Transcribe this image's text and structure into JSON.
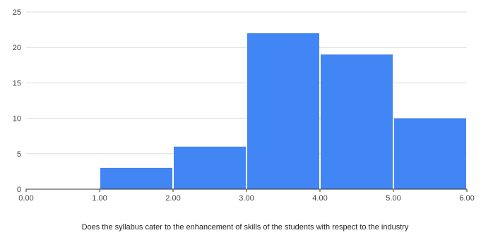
{
  "chart_data": {
    "type": "bar",
    "subtype": "histogram",
    "title": "",
    "xlabel": "Does the syllabus cater to the enhancement of skills of the students with respect to the industry",
    "ylabel": "",
    "bins": [
      {
        "from": 0,
        "to": 1,
        "count": 0
      },
      {
        "from": 1,
        "to": 2,
        "count": 3
      },
      {
        "from": 2,
        "to": 3,
        "count": 6
      },
      {
        "from": 3,
        "to": 4,
        "count": 22
      },
      {
        "from": 4,
        "to": 5,
        "count": 19
      },
      {
        "from": 5,
        "to": 6,
        "count": 10
      }
    ],
    "xlim": [
      0,
      6
    ],
    "ylim": [
      0,
      25
    ],
    "x_ticks": [
      "0.00",
      "1.00",
      "2.00",
      "3.00",
      "4.00",
      "5.00",
      "6.00"
    ],
    "y_ticks": [
      0,
      5,
      10,
      15,
      20,
      25
    ],
    "grid": "horizontal",
    "legend": "none",
    "colors": {
      "bar": "#4285f4",
      "grid": "#dddddd",
      "axis": "#333333",
      "text": "#444444"
    }
  }
}
